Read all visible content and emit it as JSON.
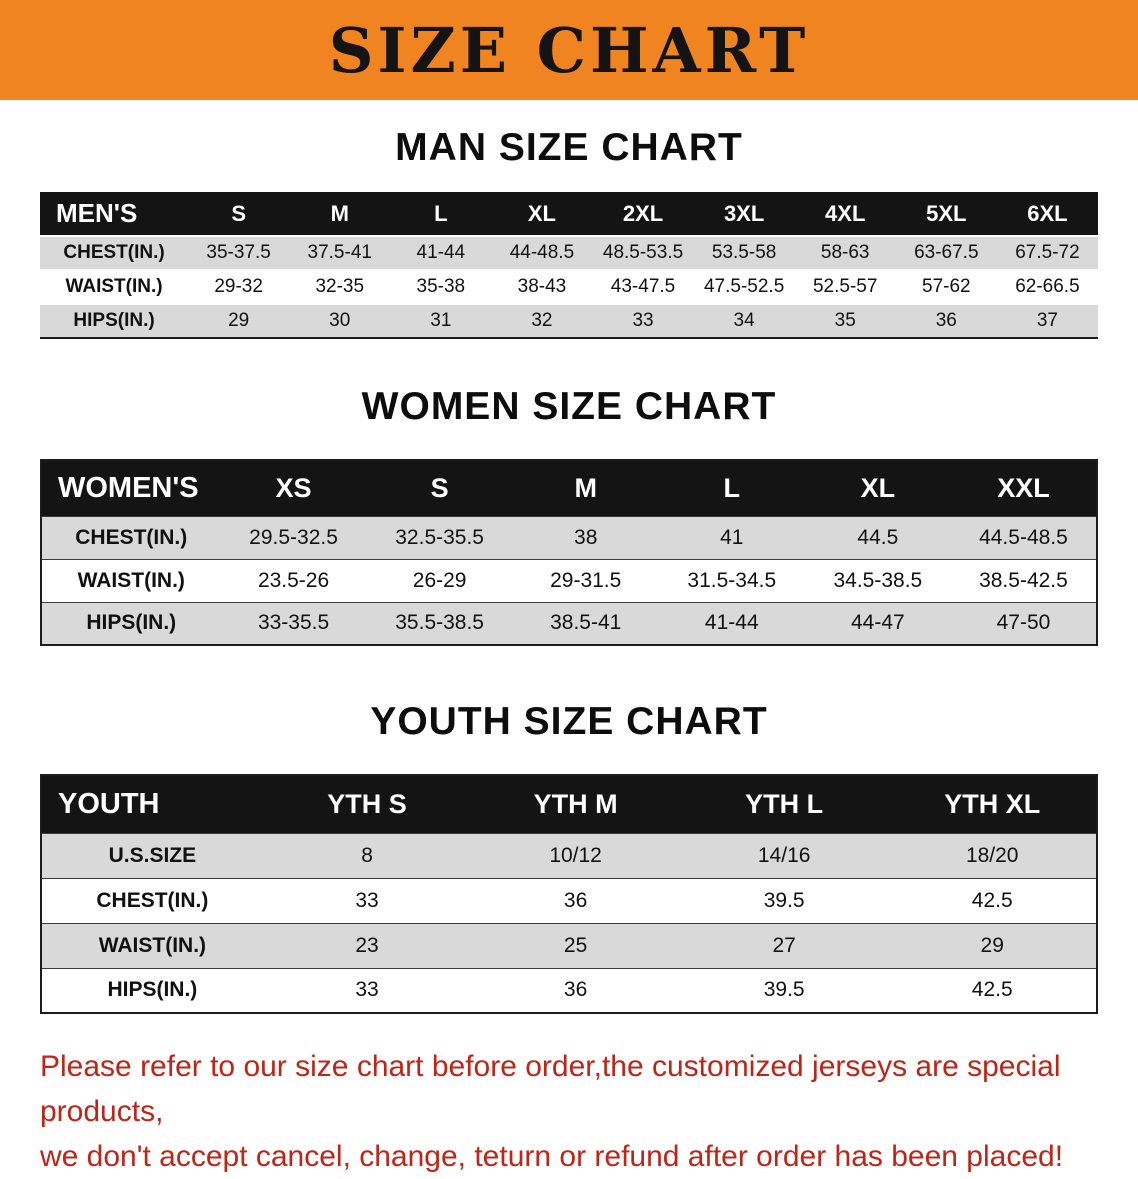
{
  "banner": {
    "title": "SIZE CHART",
    "bg_color": "#f08421"
  },
  "men": {
    "heading": "MAN SIZE CHART",
    "label": "MEN'S",
    "sizes": [
      "S",
      "M",
      "L",
      "XL",
      "2XL",
      "3XL",
      "4XL",
      "5XL",
      "6XL"
    ],
    "rows": [
      {
        "label": "CHEST(IN.)",
        "values": [
          "35-37.5",
          "37.5-41",
          "41-44",
          "44-48.5",
          "48.5-53.5",
          "53.5-58",
          "58-63",
          "63-67.5",
          "67.5-72"
        ]
      },
      {
        "label": "WAIST(IN.)",
        "values": [
          "29-32",
          "32-35",
          "35-38",
          "38-43",
          "43-47.5",
          "47.5-52.5",
          "52.5-57",
          "57-62",
          "62-66.5"
        ]
      },
      {
        "label": "HIPS(IN.)",
        "values": [
          "29",
          "30",
          "31",
          "32",
          "33",
          "34",
          "35",
          "36",
          "37"
        ]
      }
    ]
  },
  "women": {
    "heading": "WOMEN SIZE CHART",
    "label": "WOMEN'S",
    "sizes": [
      "XS",
      "S",
      "M",
      "L",
      "XL",
      "XXL"
    ],
    "rows": [
      {
        "label": "CHEST(IN.)",
        "values": [
          "29.5-32.5",
          "32.5-35.5",
          "38",
          "41",
          "44.5",
          "44.5-48.5"
        ]
      },
      {
        "label": "WAIST(IN.)",
        "values": [
          "23.5-26",
          "26-29",
          "29-31.5",
          "31.5-34.5",
          "34.5-38.5",
          "38.5-42.5"
        ]
      },
      {
        "label": "HIPS(IN.)",
        "values": [
          "33-35.5",
          "35.5-38.5",
          "38.5-41",
          "41-44",
          "44-47",
          "47-50"
        ]
      }
    ]
  },
  "youth": {
    "heading": "YOUTH SIZE CHART",
    "label": "YOUTH",
    "sizes": [
      "YTH S",
      "YTH M",
      "YTH L",
      "YTH XL"
    ],
    "rows": [
      {
        "label": "U.S.SIZE",
        "values": [
          "8",
          "10/12",
          "14/16",
          "18/20"
        ]
      },
      {
        "label": "CHEST(IN.)",
        "values": [
          "33",
          "36",
          "39.5",
          "42.5"
        ]
      },
      {
        "label": "WAIST(IN.)",
        "values": [
          "23",
          "25",
          "27",
          "29"
        ]
      },
      {
        "label": "HIPS(IN.)",
        "values": [
          "33",
          "36",
          "39.5",
          "42.5"
        ]
      }
    ]
  },
  "disclaimer": {
    "line1": "Please refer to our size chart before order,the customized jerseys are special products,",
    "line2": "we don't accept cancel, change, teturn or refund after order has been placed!",
    "color": "#bf2418"
  }
}
